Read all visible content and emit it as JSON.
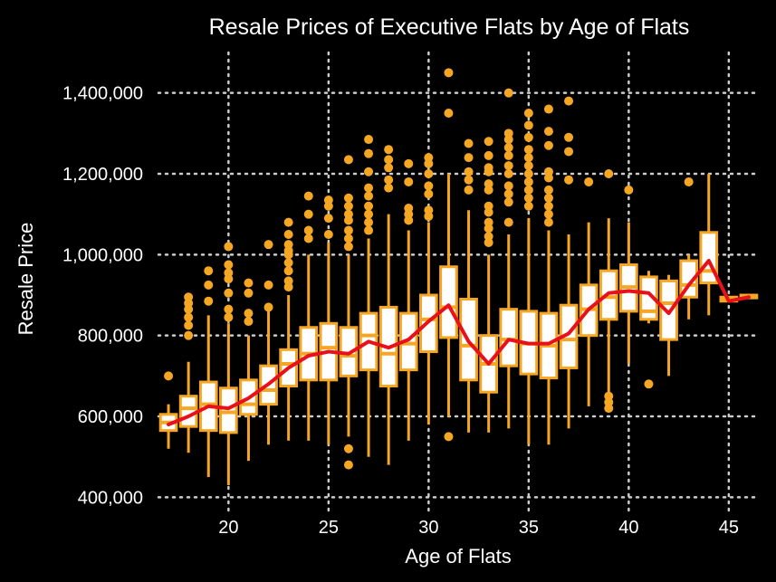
{
  "chart_data": {
    "type": "box",
    "title": "Resale Prices of Executive Flats by Age of Flats",
    "xlabel": "Age of Flats",
    "ylabel": "Resale Price",
    "xlim": [
      16.5,
      46.5
    ],
    "ylim": [
      365000,
      1500000
    ],
    "x_ticks": [
      20,
      25,
      30,
      35,
      40,
      45
    ],
    "y_ticks": [
      400000,
      600000,
      800000,
      1000000,
      1200000,
      1400000
    ],
    "y_tick_labels": [
      "400,000",
      "600,000",
      "800,000",
      "1,000,000",
      "1,200,000",
      "1,400,000"
    ],
    "grid": true,
    "box_color": "#f5a623",
    "box_fill": "#ffffff",
    "line_color": "#e8101a",
    "background": "#000000",
    "boxes": [
      {
        "age": 17,
        "q1": 565000,
        "median": 585000,
        "q3": 605000,
        "whisker_low": 520000,
        "whisker_high": 630000,
        "outliers": [
          700000
        ]
      },
      {
        "age": 18,
        "q1": 575000,
        "median": 620000,
        "q3": 650000,
        "whisker_low": 510000,
        "whisker_high": 735000,
        "outliers": [
          800000,
          825000,
          845000,
          865000,
          880000,
          895000
        ]
      },
      {
        "age": 19,
        "q1": 565000,
        "median": 630000,
        "q3": 685000,
        "whisker_low": 450000,
        "whisker_high": 850000,
        "outliers": [
          885000,
          925000,
          960000
        ]
      },
      {
        "age": 20,
        "q1": 560000,
        "median": 610000,
        "q3": 670000,
        "whisker_low": 430000,
        "whisker_high": 830000,
        "outliers": [
          845000,
          865000,
          905000,
          940000,
          955000,
          975000,
          1020000
        ]
      },
      {
        "age": 21,
        "q1": 605000,
        "median": 630000,
        "q3": 690000,
        "whisker_low": 490000,
        "whisker_high": 800000,
        "outliers": [
          835000,
          855000,
          905000,
          930000
        ]
      },
      {
        "age": 22,
        "q1": 630000,
        "median": 665000,
        "q3": 725000,
        "whisker_low": 530000,
        "whisker_high": 860000,
        "outliers": [
          870000,
          925000,
          1025000
        ]
      },
      {
        "age": 23,
        "q1": 675000,
        "median": 730000,
        "q3": 765000,
        "whisker_low": 540000,
        "whisker_high": 900000,
        "outliers": [
          920000,
          935000,
          960000,
          980000,
          1000000,
          1010000,
          1025000,
          1050000,
          1080000
        ]
      },
      {
        "age": 24,
        "q1": 690000,
        "median": 755000,
        "q3": 820000,
        "whisker_low": 540000,
        "whisker_high": 1000000,
        "outliers": [
          1040000,
          1060000,
          1100000,
          1145000
        ]
      },
      {
        "age": 25,
        "q1": 690000,
        "median": 770000,
        "q3": 830000,
        "whisker_low": 530000,
        "whisker_high": 1030000,
        "outliers": [
          1050000,
          1090000,
          1120000,
          1135000
        ]
      },
      {
        "age": 26,
        "q1": 700000,
        "median": 750000,
        "q3": 820000,
        "whisker_low": 550000,
        "whisker_high": 1000000,
        "outliers": [
          480000,
          520000,
          1020000,
          1040000,
          1060000,
          1085000,
          1100000,
          1120000,
          1140000,
          1235000
        ]
      },
      {
        "age": 27,
        "q1": 715000,
        "median": 800000,
        "q3": 855000,
        "whisker_low": 500000,
        "whisker_high": 1040000,
        "outliers": [
          1060000,
          1080000,
          1100000,
          1120000,
          1145000,
          1165000,
          1205000,
          1250000,
          1285000
        ]
      },
      {
        "age": 28,
        "q1": 675000,
        "median": 755000,
        "q3": 870000,
        "whisker_low": 480000,
        "whisker_high": 1100000,
        "outliers": [
          1165000,
          1185000,
          1215000,
          1235000,
          1260000
        ]
      },
      {
        "age": 29,
        "q1": 715000,
        "median": 780000,
        "q3": 855000,
        "whisker_low": 540000,
        "whisker_high": 1060000,
        "outliers": [
          1085000,
          1100000,
          1115000,
          1180000,
          1225000
        ]
      },
      {
        "age": 30,
        "q1": 760000,
        "median": 840000,
        "q3": 900000,
        "whisker_low": 580000,
        "whisker_high": 1080000,
        "outliers": [
          1095000,
          1110000,
          1150000,
          1170000,
          1200000,
          1225000,
          1240000
        ]
      },
      {
        "age": 31,
        "q1": 795000,
        "median": 870000,
        "q3": 970000,
        "whisker_low": 600000,
        "whisker_high": 1200000,
        "outliers": [
          550000,
          1350000,
          1450000
        ]
      },
      {
        "age": 32,
        "q1": 690000,
        "median": 775000,
        "q3": 890000,
        "whisker_low": 560000,
        "whisker_high": 1110000,
        "outliers": [
          1160000,
          1185000,
          1205000,
          1240000,
          1275000
        ]
      },
      {
        "age": 33,
        "q1": 660000,
        "median": 730000,
        "q3": 800000,
        "whisker_low": 560000,
        "whisker_high": 1000000,
        "outliers": [
          1030000,
          1045000,
          1065000,
          1080000,
          1105000,
          1120000,
          1160000,
          1175000,
          1205000,
          1215000,
          1245000,
          1280000
        ]
      },
      {
        "age": 34,
        "q1": 725000,
        "median": 790000,
        "q3": 865000,
        "whisker_low": 570000,
        "whisker_high": 1050000,
        "outliers": [
          1080000,
          1130000,
          1150000,
          1170000,
          1200000,
          1220000,
          1245000,
          1265000,
          1285000,
          1300000,
          1400000
        ]
      },
      {
        "age": 35,
        "q1": 705000,
        "median": 780000,
        "q3": 860000,
        "whisker_low": 530000,
        "whisker_high": 1090000,
        "outliers": [
          1120000,
          1140000,
          1160000,
          1180000,
          1200000,
          1220000,
          1240000,
          1260000,
          1290000,
          1320000,
          1350000
        ]
      },
      {
        "age": 36,
        "q1": 695000,
        "median": 775000,
        "q3": 855000,
        "whisker_low": 530000,
        "whisker_high": 1060000,
        "outliers": [
          1080000,
          1100000,
          1120000,
          1140000,
          1160000,
          1190000,
          1205000,
          1270000,
          1305000,
          1360000
        ]
      },
      {
        "age": 37,
        "q1": 720000,
        "median": 790000,
        "q3": 875000,
        "whisker_low": 570000,
        "whisker_high": 1050000,
        "outliers": [
          1185000,
          1255000,
          1290000,
          1380000
        ]
      },
      {
        "age": 38,
        "q1": 800000,
        "median": 865000,
        "q3": 925000,
        "whisker_low": 625000,
        "whisker_high": 1080000,
        "outliers": [
          1180000
        ]
      },
      {
        "age": 39,
        "q1": 840000,
        "median": 895000,
        "q3": 960000,
        "whisker_low": 660000,
        "whisker_high": 1090000,
        "outliers": [
          620000,
          635000,
          650000,
          1200000
        ]
      },
      {
        "age": 40,
        "q1": 860000,
        "median": 920000,
        "q3": 975000,
        "whisker_low": 730000,
        "whisker_high": 1080000,
        "outliers": [
          1160000
        ]
      },
      {
        "age": 41,
        "q1": 840000,
        "median": 860000,
        "q3": 945000,
        "whisker_low": 830000,
        "whisker_high": 960000,
        "outliers": [
          680000
        ]
      },
      {
        "age": 42,
        "q1": 790000,
        "median": 880000,
        "q3": 935000,
        "whisker_low": 700000,
        "whisker_high": 950000,
        "outliers": []
      },
      {
        "age": 43,
        "q1": 895000,
        "median": 925000,
        "q3": 985000,
        "whisker_low": 840000,
        "whisker_high": 1000000,
        "outliers": [
          1180000
        ]
      },
      {
        "age": 44,
        "q1": 930000,
        "median": 960000,
        "q3": 1055000,
        "whisker_low": 850000,
        "whisker_high": 1200000,
        "outliers": []
      },
      {
        "age": 45,
        "q1": 885000,
        "median": 890000,
        "q3": 895000,
        "whisker_low": 885000,
        "whisker_high": 895000,
        "outliers": []
      },
      {
        "age": 46,
        "q1": 893000,
        "median": 898000,
        "q3": 900000,
        "whisker_low": 893000,
        "whisker_high": 900000,
        "outliers": []
      }
    ],
    "mean_line": {
      "x": [
        17,
        18,
        19,
        20,
        21,
        22,
        23,
        24,
        25,
        26,
        27,
        28,
        29,
        30,
        31,
        32,
        33,
        34,
        35,
        36,
        37,
        38,
        39,
        40,
        41,
        42,
        43,
        44,
        45,
        46
      ],
      "y": [
        580000,
        600000,
        625000,
        620000,
        645000,
        680000,
        720000,
        750000,
        760000,
        755000,
        785000,
        770000,
        790000,
        835000,
        875000,
        785000,
        730000,
        790000,
        780000,
        780000,
        805000,
        865000,
        905000,
        910000,
        905000,
        855000,
        925000,
        985000,
        885000,
        895000
      ]
    }
  }
}
